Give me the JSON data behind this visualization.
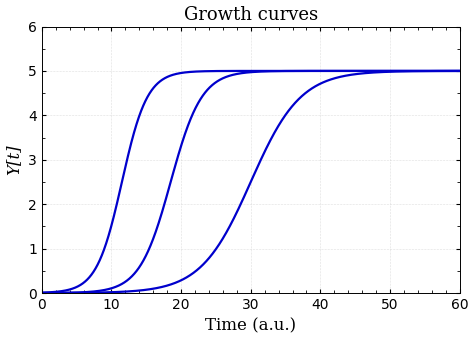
{
  "title": "Growth curves",
  "xlabel": "Time (a.u.)",
  "ylabel": "Y[t]",
  "xlim": [
    0,
    60
  ],
  "ylim": [
    0,
    6
  ],
  "xticks": [
    0,
    10,
    20,
    30,
    40,
    50,
    60
  ],
  "yticks": [
    0,
    1,
    2,
    3,
    4,
    5,
    6
  ],
  "carrying_capacity": 5.0,
  "growth_rates": [
    0.55,
    0.45,
    0.28
  ],
  "lag_times": [
    11.5,
    18.5,
    30.0
  ],
  "line_color": "#0000CC",
  "line_width": 1.6,
  "t_start": 0,
  "t_end": 60,
  "t_points": 2000,
  "background_color": "#ffffff",
  "title_fontsize": 13,
  "label_fontsize": 12,
  "tick_fontsize": 10
}
